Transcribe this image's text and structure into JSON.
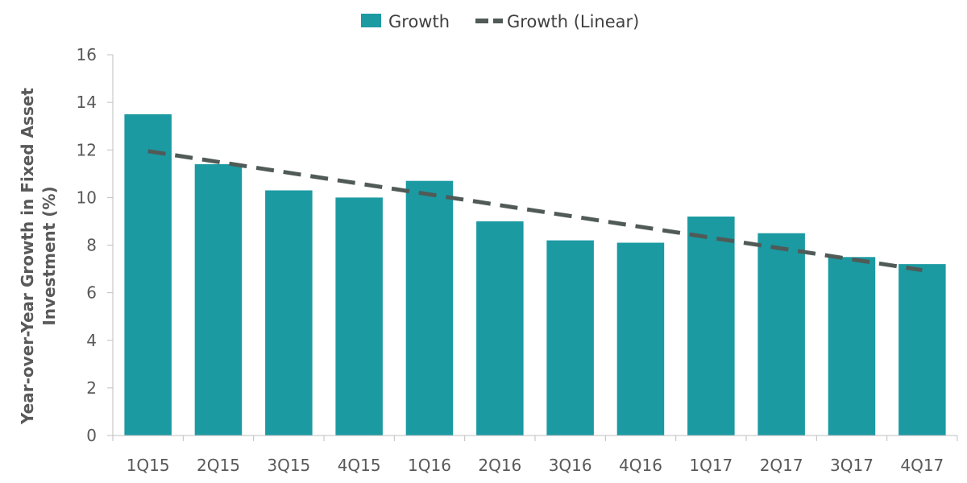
{
  "chart_data": {
    "type": "bar",
    "categories": [
      "1Q15",
      "2Q15",
      "3Q15",
      "4Q15",
      "1Q16",
      "2Q16",
      "3Q16",
      "4Q16",
      "1Q17",
      "2Q17",
      "3Q17",
      "4Q17"
    ],
    "series": [
      {
        "name": "Growth",
        "values": [
          13.5,
          11.4,
          10.3,
          10.0,
          10.7,
          9.0,
          8.2,
          8.1,
          9.2,
          8.5,
          7.5,
          7.2
        ],
        "color": "#1b9aa2"
      }
    ],
    "trendline": {
      "name": "Growth (Linear)",
      "type": "linear",
      "start": 11.95,
      "end": 6.95,
      "color": "#505a57",
      "style": "dashed"
    },
    "ylabel_line1": "Year-over-Year Growth in Fixed Asset",
    "ylabel_line2": "Investment (%)",
    "xlabel": "",
    "ylim": [
      0,
      16
    ],
    "yticks": [
      "0",
      "2",
      "4",
      "6",
      "8",
      "10",
      "12",
      "14",
      "16"
    ],
    "legend_position": "top-center",
    "grid": false
  }
}
